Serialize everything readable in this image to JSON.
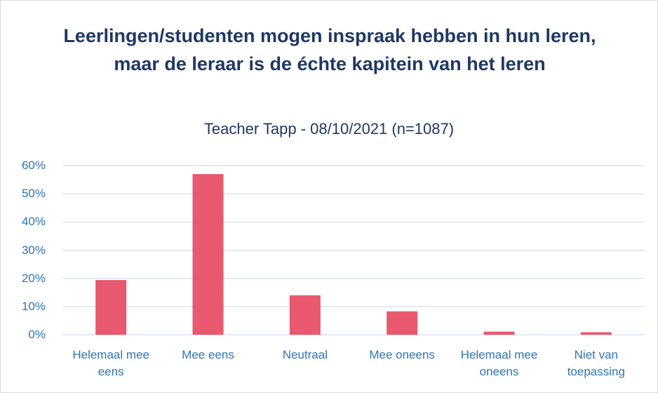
{
  "chart_data": {
    "type": "bar",
    "title": "Leerlingen/studenten mogen inspraak hebben in hun leren, maar de leraar is de échte kapitein van het leren",
    "subtitle": "Teacher Tapp - 08/10/2021 (n=1087)",
    "categories": [
      "Helemaal mee eens",
      "Mee eens",
      "Neutraal",
      "Mee oneens",
      "Helemaal mee oneens",
      "Niet van toepassing"
    ],
    "values": [
      19.4,
      57,
      14,
      8.3,
      1.1,
      0.9
    ],
    "color": "#e8586e",
    "ylim": [
      0,
      60
    ],
    "yticks": [
      {
        "value": 0,
        "label": "0%"
      },
      {
        "value": 10,
        "label": "10%"
      },
      {
        "value": 20,
        "label": "20%"
      },
      {
        "value": 30,
        "label": "30%"
      },
      {
        "value": 40,
        "label": "40%"
      },
      {
        "value": 50,
        "label": "50%"
      },
      {
        "value": 60,
        "label": "60%"
      }
    ],
    "grid": true
  }
}
